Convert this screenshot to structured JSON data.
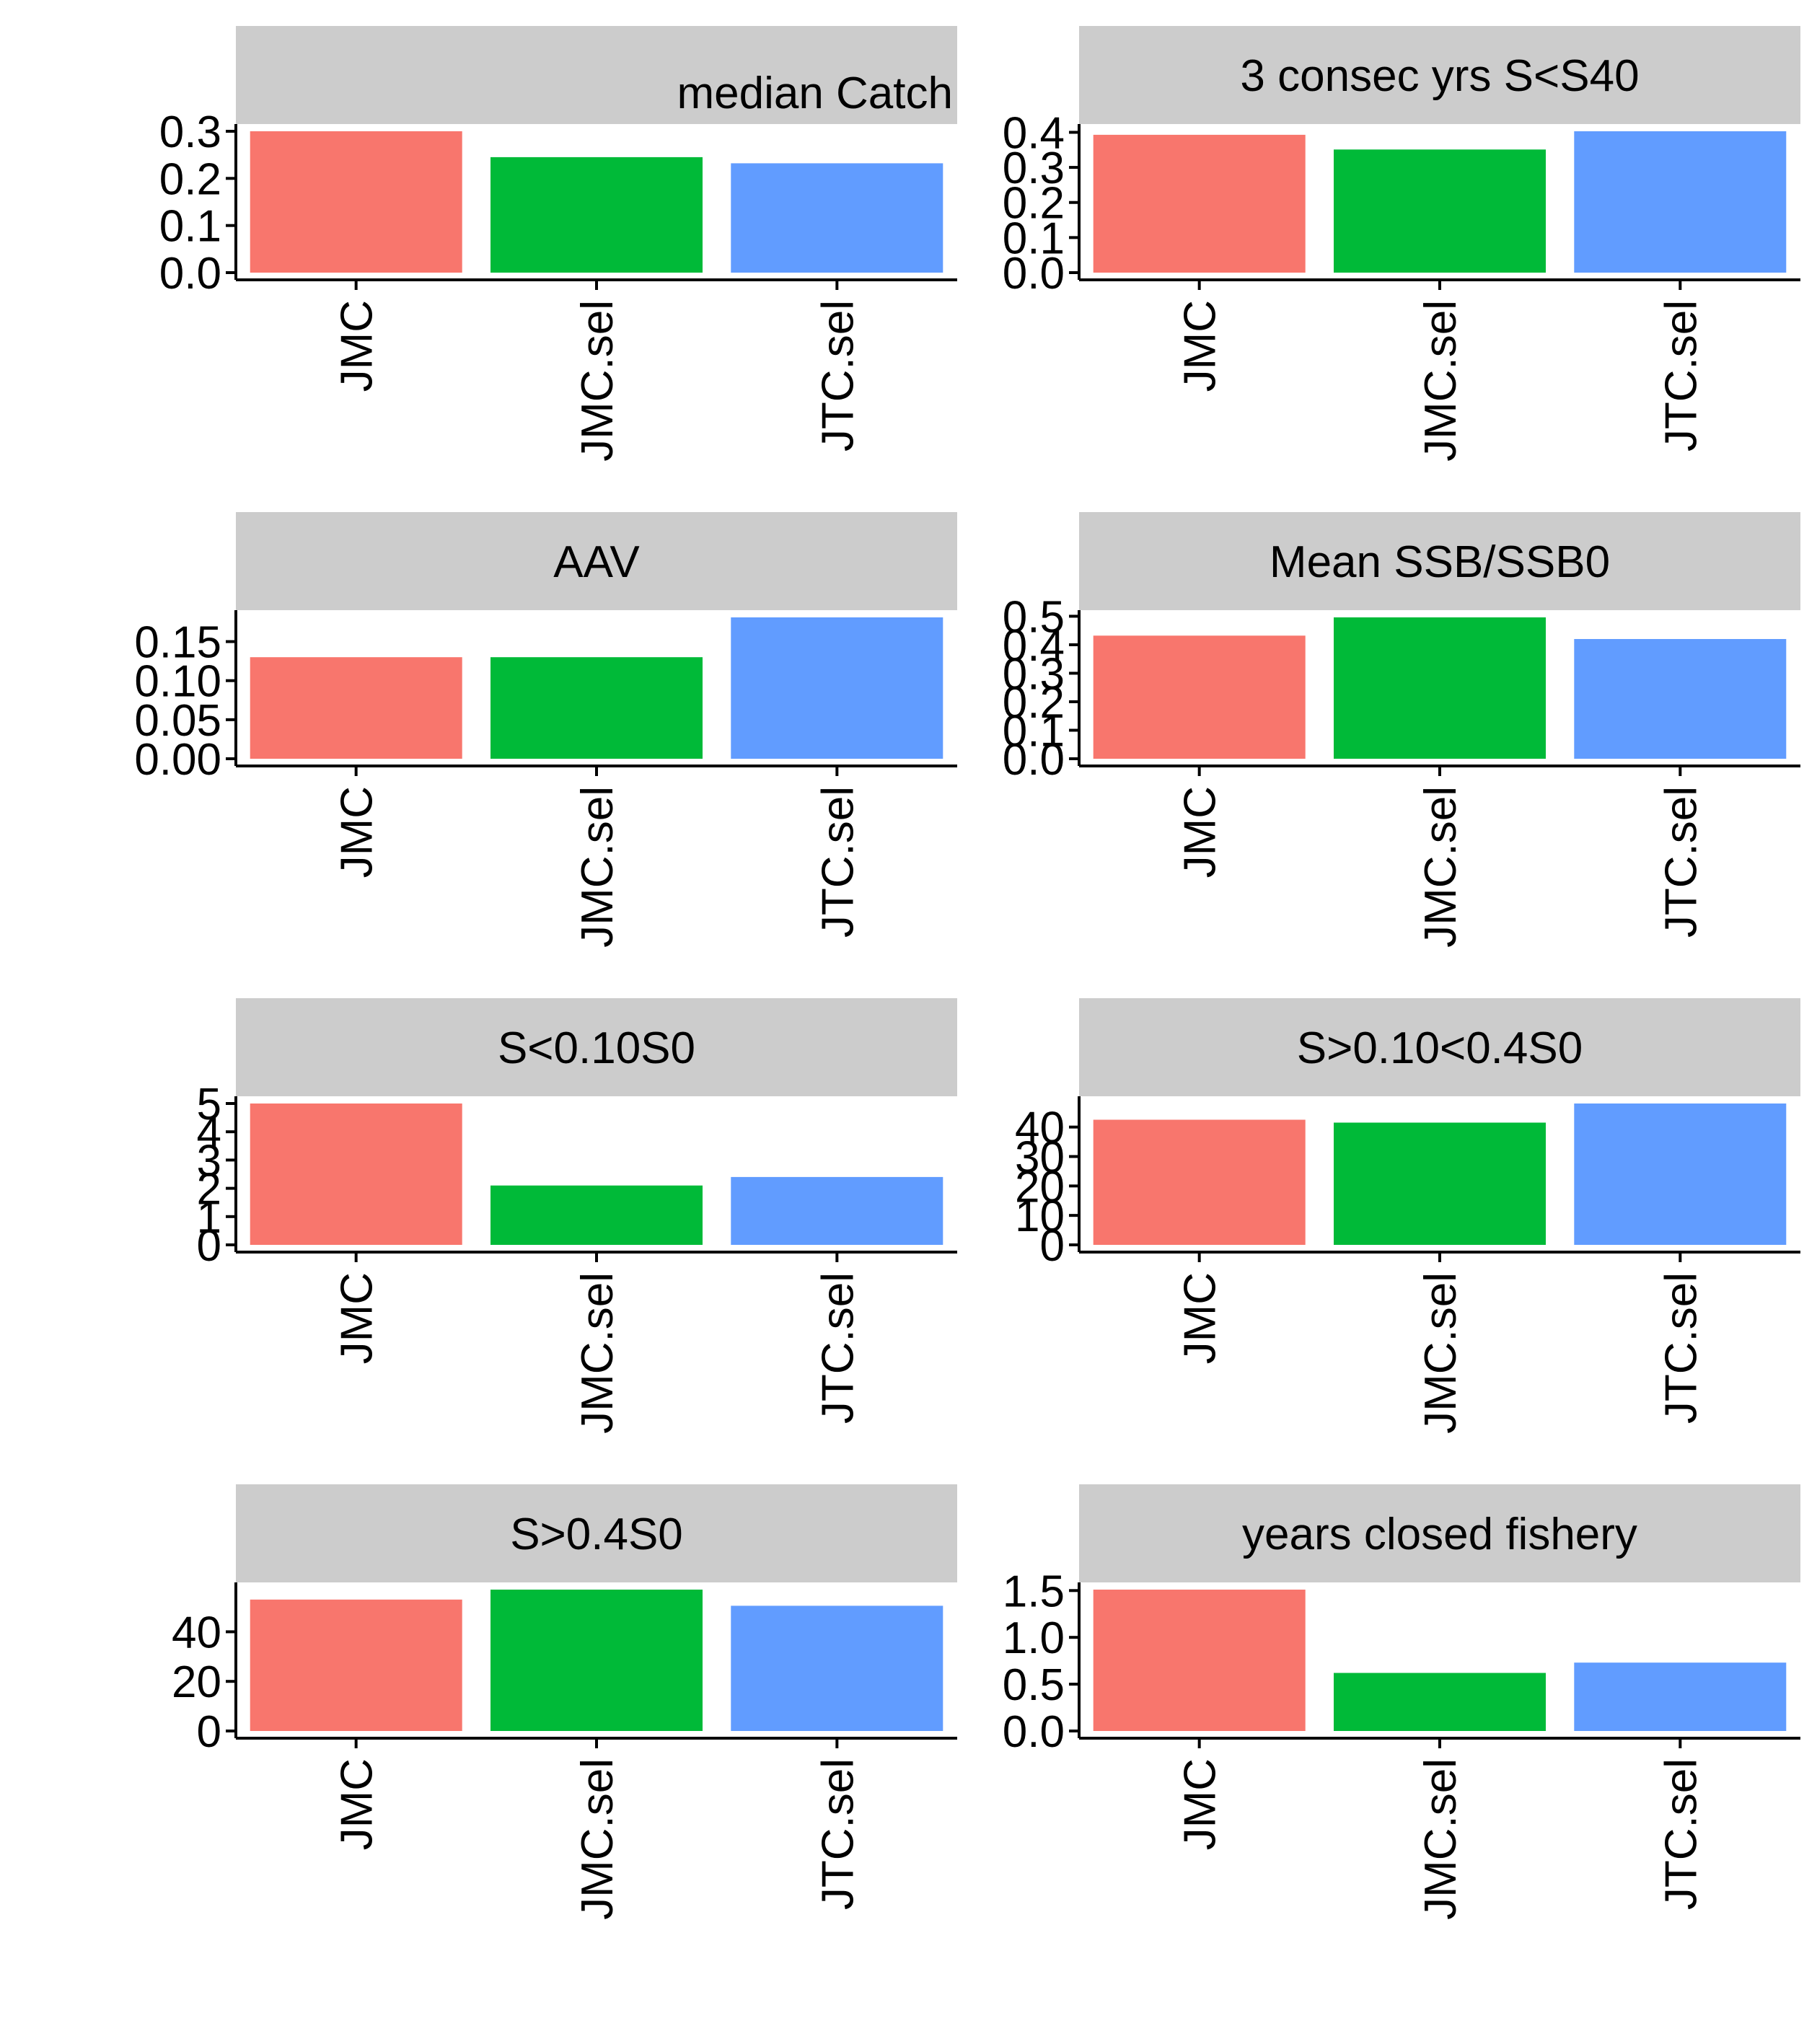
{
  "figure": {
    "title": ""
  },
  "colors": {
    "strip_background": "#cccccc",
    "axis": "#000000",
    "series": {
      "JMC": "#f8766d",
      "JMC.sel": "#00ba38",
      "JTC.sel": "#619cff"
    }
  },
  "chart_data": [
    {
      "type": "bar",
      "title": "median Catch",
      "title_align": "right",
      "categories": [
        "JMC",
        "JMC.sel",
        "JTC.sel"
      ],
      "values": [
        0.3,
        0.245,
        0.232
      ],
      "ylim": [
        0,
        0.3
      ],
      "yticks": [
        "0.0",
        "0.1",
        "0.2",
        "0.3"
      ],
      "ytick_values": [
        0,
        0.1,
        0.2,
        0.3
      ]
    },
    {
      "type": "bar",
      "title": "3 consec yrs S<S40",
      "title_align": "center",
      "categories": [
        "JMC",
        "JMC.sel",
        "JTC.sel"
      ],
      "values": [
        0.393,
        0.351,
        0.403
      ],
      "ylim": [
        0,
        0.403
      ],
      "yticks": [
        "0.0",
        "0.1",
        "0.2",
        "0.3",
        "0.4"
      ],
      "ytick_values": [
        0,
        0.1,
        0.2,
        0.3,
        0.4
      ]
    },
    {
      "type": "bar",
      "title": "AAV",
      "title_align": "center",
      "categories": [
        "JMC",
        "JMC.sel",
        "JTC.sel"
      ],
      "values": [
        0.13,
        0.13,
        0.181
      ],
      "ylim": [
        0,
        0.181
      ],
      "yticks": [
        "0.00",
        "0.05",
        "0.10",
        "0.15"
      ],
      "ytick_values": [
        0,
        0.05,
        0.1,
        0.15
      ]
    },
    {
      "type": "bar",
      "title": "Mean SSB/SSB0",
      "title_align": "center",
      "categories": [
        "JMC",
        "JMC.sel",
        "JTC.sel"
      ],
      "values": [
        0.432,
        0.496,
        0.42
      ],
      "ylim": [
        0,
        0.496
      ],
      "yticks": [
        "0.0",
        "0.1",
        "0.2",
        "0.3",
        "0.4",
        "0.5"
      ],
      "ytick_values": [
        0,
        0.1,
        0.2,
        0.3,
        0.4,
        0.5
      ]
    },
    {
      "type": "bar",
      "title": "S<0.10S0",
      "title_align": "center",
      "categories": [
        "JMC",
        "JMC.sel",
        "JTC.sel"
      ],
      "values": [
        5.0,
        2.1,
        2.4
      ],
      "ylim": [
        0,
        5.0
      ],
      "yticks": [
        "0",
        "1",
        "2",
        "3",
        "4",
        "5"
      ],
      "ytick_values": [
        0,
        1,
        2,
        3,
        4,
        5
      ]
    },
    {
      "type": "bar",
      "title": "S>0.10<0.4S0",
      "title_align": "center",
      "categories": [
        "JMC",
        "JMC.sel",
        "JTC.sel"
      ],
      "values": [
        42.5,
        41.5,
        48.0
      ],
      "ylim": [
        0,
        48.0
      ],
      "yticks": [
        "0",
        "10",
        "20",
        "30",
        "40"
      ],
      "ytick_values": [
        0,
        10,
        20,
        30,
        40
      ]
    },
    {
      "type": "bar",
      "title": "S>0.4S0",
      "title_align": "center",
      "categories": [
        "JMC",
        "JMC.sel",
        "JTC.sel"
      ],
      "values": [
        53.0,
        57.0,
        50.5
      ],
      "ylim": [
        0,
        57.0
      ],
      "yticks": [
        "0",
        "20",
        "40"
      ],
      "ytick_values": [
        0,
        20,
        40
      ]
    },
    {
      "type": "bar",
      "title": "years closed fishery",
      "title_align": "center",
      "categories": [
        "JMC",
        "JMC.sel",
        "JTC.sel"
      ],
      "values": [
        1.51,
        0.62,
        0.73
      ],
      "ylim": [
        0,
        1.51
      ],
      "yticks": [
        "0.0",
        "0.5",
        "1.0",
        "1.5"
      ],
      "ytick_values": [
        0,
        0.5,
        1.0,
        1.5
      ]
    }
  ]
}
